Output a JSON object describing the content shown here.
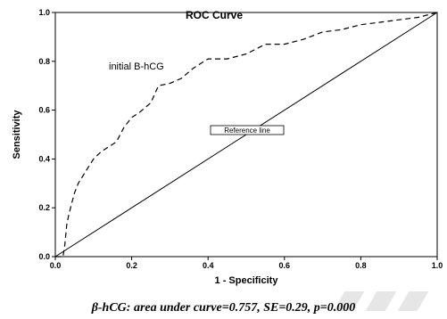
{
  "chart_data": {
    "type": "line",
    "title": "ROC Curve",
    "xlabel": "1 - Specificity",
    "ylabel": "Sensitivity",
    "xlim": [
      0,
      1
    ],
    "ylim": [
      0,
      1
    ],
    "x_ticks": [
      "0.0",
      "0.2",
      "0.4",
      "0.6",
      "0.8",
      "1.0"
    ],
    "y_ticks": [
      "0.0",
      "0.2",
      "0.4",
      "0.6",
      "0.8",
      "1.0"
    ],
    "grid": false,
    "series": [
      {
        "name": "initial B-hCG",
        "style": "dashed",
        "x": [
          0.0,
          0.02,
          0.025,
          0.03,
          0.035,
          0.04,
          0.05,
          0.06,
          0.08,
          0.1,
          0.12,
          0.14,
          0.16,
          0.18,
          0.2,
          0.22,
          0.25,
          0.27,
          0.3,
          0.33,
          0.36,
          0.38,
          0.4,
          0.45,
          0.5,
          0.55,
          0.6,
          0.65,
          0.7,
          0.75,
          0.8,
          0.85,
          0.9,
          0.95,
          1.0
        ],
        "y": [
          0.0,
          0.0,
          0.05,
          0.13,
          0.17,
          0.2,
          0.26,
          0.3,
          0.35,
          0.4,
          0.43,
          0.45,
          0.47,
          0.53,
          0.57,
          0.59,
          0.63,
          0.7,
          0.71,
          0.73,
          0.77,
          0.79,
          0.81,
          0.81,
          0.83,
          0.87,
          0.87,
          0.89,
          0.92,
          0.93,
          0.95,
          0.96,
          0.97,
          0.98,
          1.0
        ]
      }
    ],
    "reference_line": {
      "label": "Reference line",
      "x": [
        0,
        1
      ],
      "y": [
        0,
        1
      ]
    }
  },
  "caption": "β-hCG: area under curve=0.757, SE=0.29, p=0.000"
}
